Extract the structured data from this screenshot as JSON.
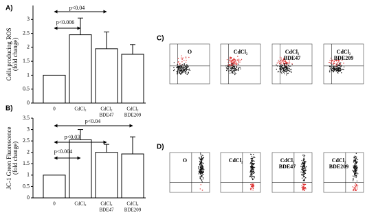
{
  "chart_data": [
    {
      "type": "bar",
      "panel_label": "A)",
      "ylabel": [
        "Cells producing ROS",
        "(fold change)"
      ],
      "categories": [
        [
          "0"
        ],
        [
          "CdCl₂"
        ],
        [
          "CdCl₂",
          "BDE47"
        ],
        [
          "CdCl₂",
          "BDE209"
        ]
      ],
      "values": [
        1,
        2.45,
        1.95,
        1.75
      ],
      "errors": [
        0,
        0.6,
        0.6,
        0.35
      ],
      "color": "#ffffff",
      "ylim": [
        0,
        3.5
      ],
      "yticks": [
        0,
        0.5,
        1,
        1.5,
        2,
        2.5,
        3
      ],
      "annotations": [
        "p<0.006",
        "p<0.04"
      ]
    },
    {
      "type": "bar",
      "panel_label": "B)",
      "ylabel": [
        "JC-1 Green Fluorescence",
        "(fold change)"
      ],
      "categories": [
        [
          "0"
        ],
        [
          "CdCl₂"
        ],
        [
          "CdCl₂",
          "BDE47"
        ],
        [
          "CdCl₂",
          "BDE209"
        ]
      ],
      "values": [
        1,
        2.55,
        2.0,
        1.93
      ],
      "errors": [
        0,
        0.45,
        0.35,
        0.75
      ],
      "color": "#ffffff",
      "ylim": [
        0,
        3.5
      ],
      "yticks": [
        0,
        0.5,
        1,
        1.5,
        2,
        2.5,
        3,
        3.5
      ],
      "annotations": [
        "p<0.04",
        "p<0.03",
        "p<0.004"
      ]
    }
  ],
  "panels": [
    {
      "label": "C)",
      "titles": [
        [
          "O"
        ],
        [
          "CdCl₂"
        ],
        [
          "CdCl₂",
          "BDE47"
        ],
        [
          "CdCl₂",
          "BDE209"
        ]
      ]
    },
    {
      "label": "D)",
      "titles": [
        [
          "O"
        ],
        [
          "CdCl₂"
        ],
        [
          "CdCl₂",
          "BDE47"
        ],
        [
          "CdCl₂",
          "BDE209"
        ]
      ]
    }
  ]
}
